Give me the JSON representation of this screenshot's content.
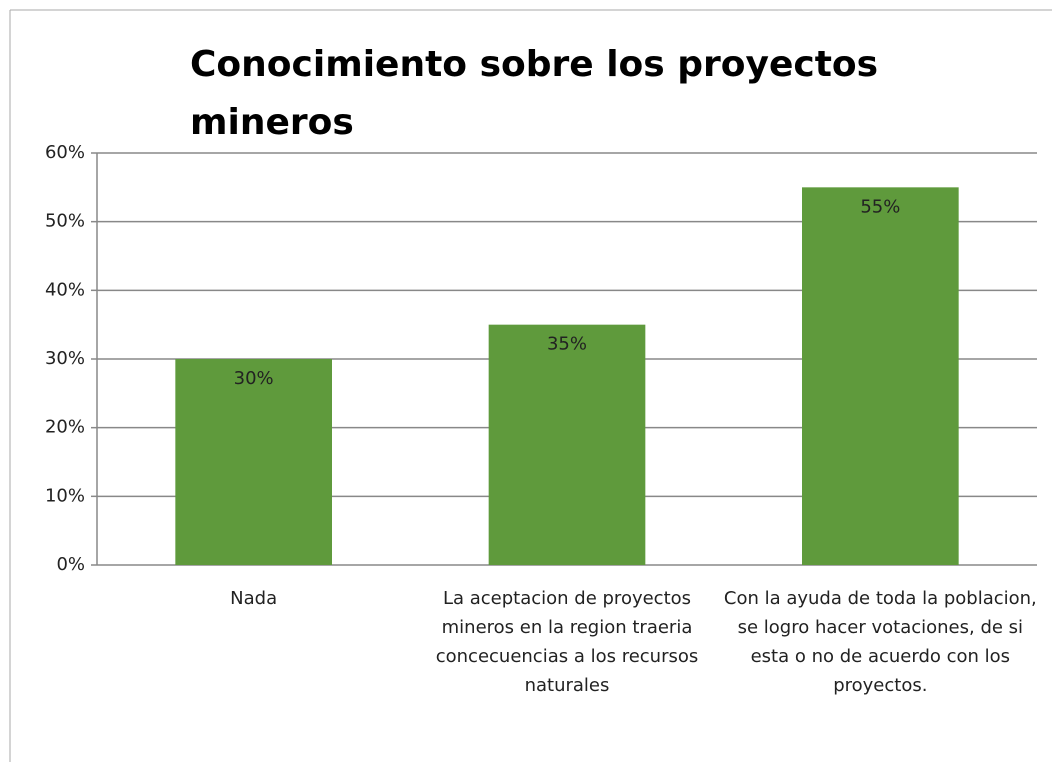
{
  "chart_data": {
    "type": "bar",
    "title": "Conocimiento sobre los proyectos mineros",
    "categories": [
      "Nada",
      "La aceptacion de proyectos mineros en la region traeria concecuencias a los recursos naturales",
      "Con la ayuda de toda la poblacion, se logro hacer votaciones, de si esta o no de acuerdo con los proyectos."
    ],
    "values": [
      30,
      35,
      55
    ],
    "value_labels": [
      "30%",
      "35%",
      "55%"
    ],
    "color": "#5f9a3c",
    "ylim": [
      0,
      60
    ],
    "yticks": [
      {
        "value": 0,
        "label": "0%"
      },
      {
        "value": 10,
        "label": "10%"
      },
      {
        "value": 20,
        "label": "20%"
      },
      {
        "value": 30,
        "label": "30%"
      },
      {
        "value": 40,
        "label": "40%"
      },
      {
        "value": 50,
        "label": "50%"
      },
      {
        "value": 60,
        "label": "60%"
      }
    ],
    "grid": true
  }
}
